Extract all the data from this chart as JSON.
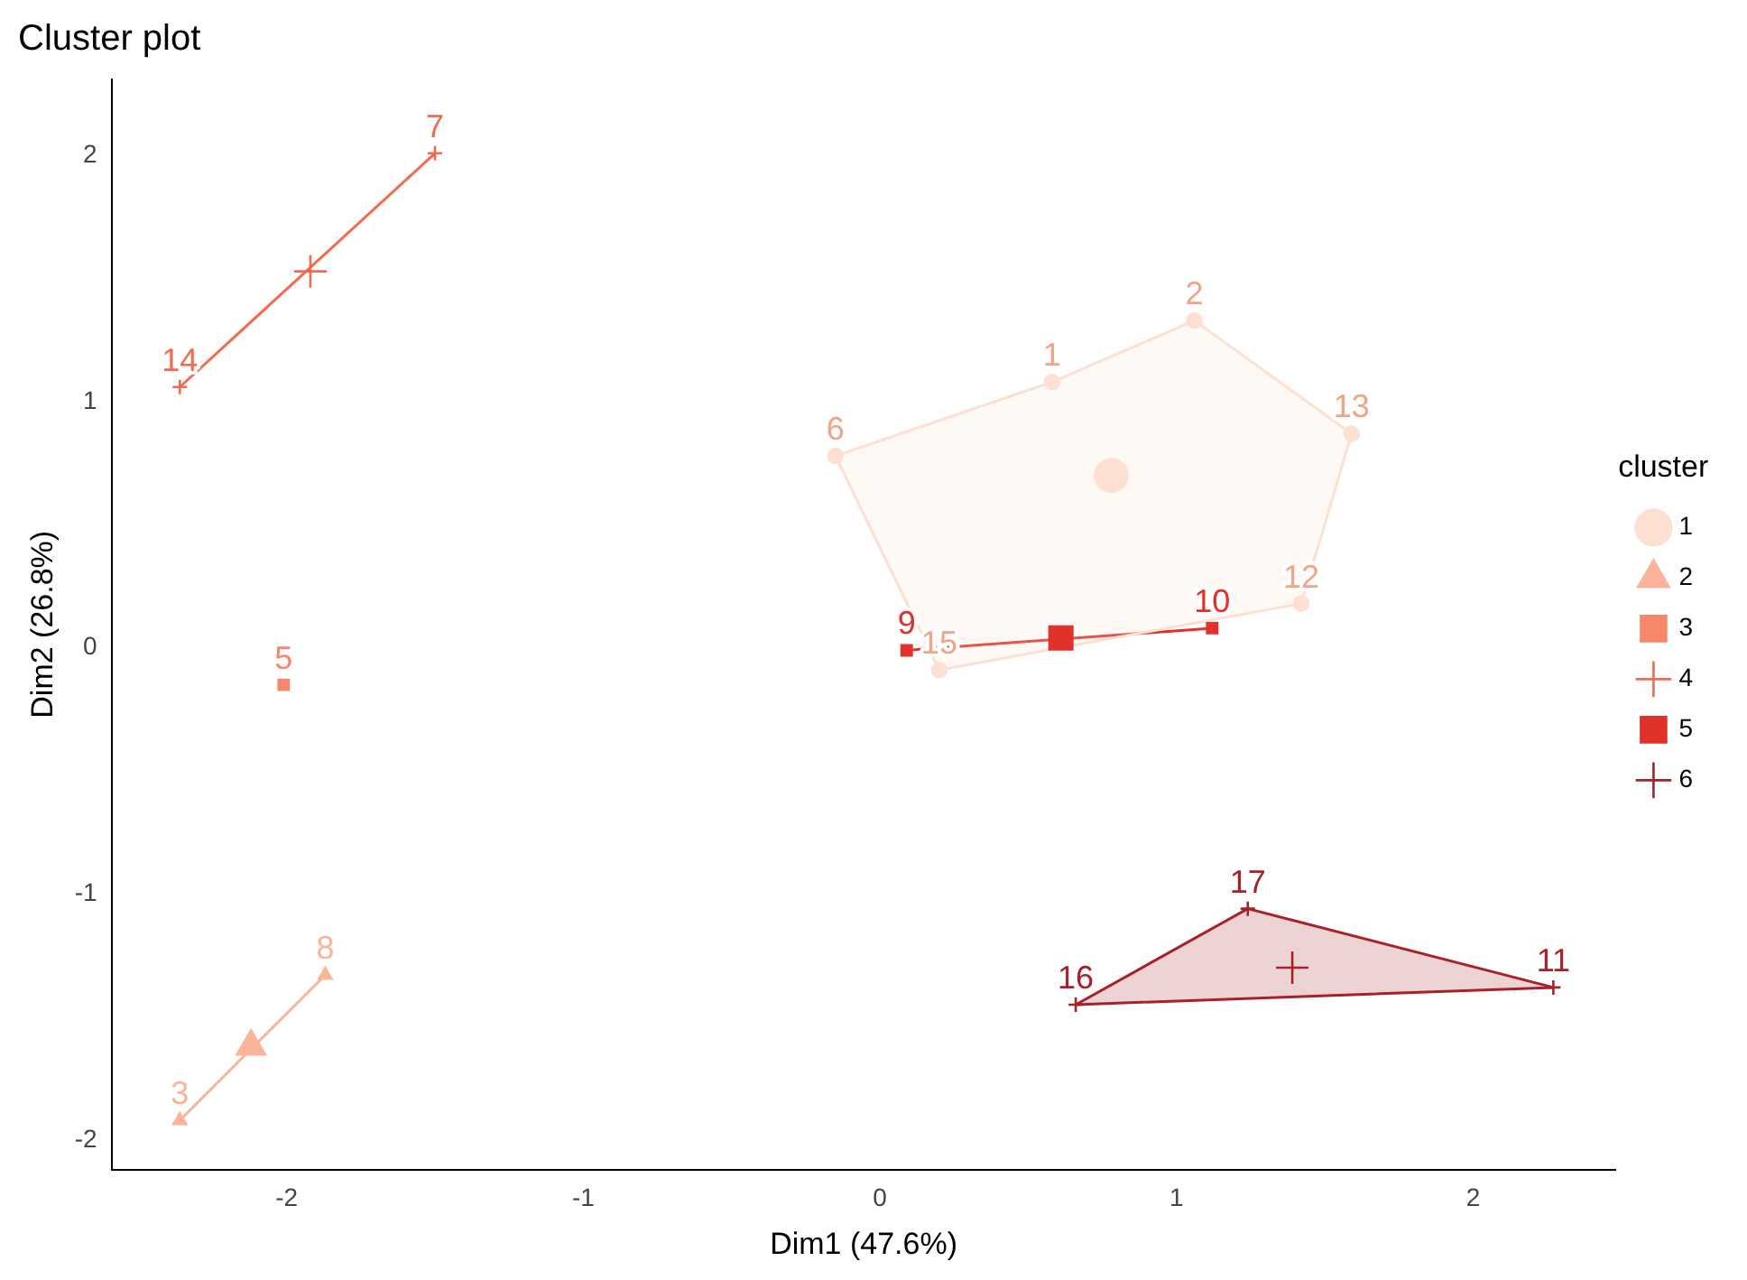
{
  "chart_data": {
    "type": "scatter",
    "title": "Cluster plot",
    "xlabel": "Dim1 (47.6%)",
    "ylabel": "Dim2 (26.8%)",
    "legend_title": "cluster",
    "legend": "right",
    "grid": false,
    "xlim": [
      -2.59,
      2.48
    ],
    "xticks": [
      -2,
      -1,
      0,
      1,
      2
    ],
    "ylim": [
      -2.12,
      2.31
    ],
    "yticks": [
      -2,
      -1,
      0,
      1,
      2
    ],
    "series": [
      {
        "type": "area",
        "color": "#fde0d2",
        "x": [
          -0.15,
          0.58,
          1.06,
          1.59,
          1.42,
          0.2,
          -0.15
        ],
        "values": [
          0.78,
          1.08,
          1.33,
          0.87,
          0.18,
          -0.09,
          0.78
        ]
      },
      {
        "type": "line",
        "color": "#f9b49a",
        "x": [
          -2.36,
          -1.87
        ],
        "values": [
          -1.92,
          -1.33
        ]
      },
      {
        "type": "line",
        "color": "#f26a50",
        "x": [
          -2.36,
          -1.5
        ],
        "values": [
          1.06,
          2.01
        ]
      },
      {
        "type": "line",
        "color": "#e0322b",
        "x": [
          0.09,
          1.12
        ],
        "values": [
          -0.01,
          0.08
        ]
      },
      {
        "type": "area",
        "color": "#a92128",
        "x": [
          0.66,
          1.24,
          2.27,
          0.66
        ],
        "values": [
          -1.45,
          -1.06,
          -1.38,
          -1.45
        ]
      },
      {
        "name": "1",
        "color": "#fde0d2",
        "marker": "circle",
        "x": [
          0.58,
          1.06,
          -0.15,
          1.42,
          1.59,
          0.2
        ],
        "values": [
          1.08,
          1.33,
          0.78,
          0.18,
          0.87,
          -0.09
        ]
      },
      {
        "name": "2",
        "color": "#f9b49a",
        "marker": "triangle",
        "x": [
          -2.36,
          -1.87
        ],
        "values": [
          -1.92,
          -1.33
        ]
      },
      {
        "name": "3",
        "color": "#f7876b",
        "marker": "square",
        "x": [
          -2.01
        ],
        "values": [
          -0.15
        ]
      },
      {
        "name": "4",
        "color": "#f26a50",
        "marker": "cross",
        "x": [
          -1.5,
          -2.36
        ],
        "values": [
          2.01,
          1.06
        ]
      },
      {
        "name": "5",
        "color": "#e0322b",
        "marker": "square",
        "x": [
          0.09,
          1.12
        ],
        "values": [
          -0.01,
          0.08
        ]
      },
      {
        "name": "6",
        "color": "#a92128",
        "marker": "cross",
        "x": [
          2.27,
          0.66,
          1.24
        ],
        "values": [
          -1.38,
          -1.45,
          -1.06
        ]
      },
      {
        "type": "scatter",
        "color": "#fde0d2",
        "marker": "circle",
        "x": [
          0.78
        ],
        "values": [
          0.7
        ]
      },
      {
        "type": "scatter",
        "color": "#f9b49a",
        "marker": "triangle",
        "x": [
          -2.12
        ],
        "values": [
          -1.62
        ]
      },
      {
        "type": "scatter",
        "color": "#f26a50",
        "marker": "cross",
        "x": [
          -1.92
        ],
        "values": [
          1.53
        ]
      },
      {
        "type": "scatter",
        "color": "#e0322b",
        "marker": "square",
        "x": [
          0.61
        ],
        "values": [
          0.04
        ]
      },
      {
        "type": "scatter",
        "color": "#a92128",
        "marker": "cross",
        "x": [
          1.39
        ],
        "values": [
          -1.3
        ]
      }
    ],
    "annotations": [
      {
        "text": "1",
        "x": 0.58,
        "y": 1.08
      },
      {
        "text": "2",
        "x": 1.06,
        "y": 1.33
      },
      {
        "text": "6",
        "x": -0.15,
        "y": 0.78
      },
      {
        "text": "12",
        "x": 1.42,
        "y": 0.18
      },
      {
        "text": "13",
        "x": 1.59,
        "y": 0.87
      },
      {
        "text": "15",
        "x": 0.2,
        "y": -0.09
      },
      {
        "text": "3",
        "x": -2.36,
        "y": -1.92
      },
      {
        "text": "8",
        "x": -1.87,
        "y": -1.33
      },
      {
        "text": "5",
        "x": -2.01,
        "y": -0.15
      },
      {
        "text": "7",
        "x": -1.5,
        "y": 2.01
      },
      {
        "text": "14",
        "x": -2.36,
        "y": 1.06
      },
      {
        "text": "9",
        "x": 0.09,
        "y": -0.01
      },
      {
        "text": "10",
        "x": 1.12,
        "y": 0.08
      },
      {
        "text": "11",
        "x": 2.27,
        "y": -1.38
      },
      {
        "text": "16",
        "x": 0.66,
        "y": -1.45
      },
      {
        "text": "17",
        "x": 1.24,
        "y": -1.06
      }
    ]
  }
}
